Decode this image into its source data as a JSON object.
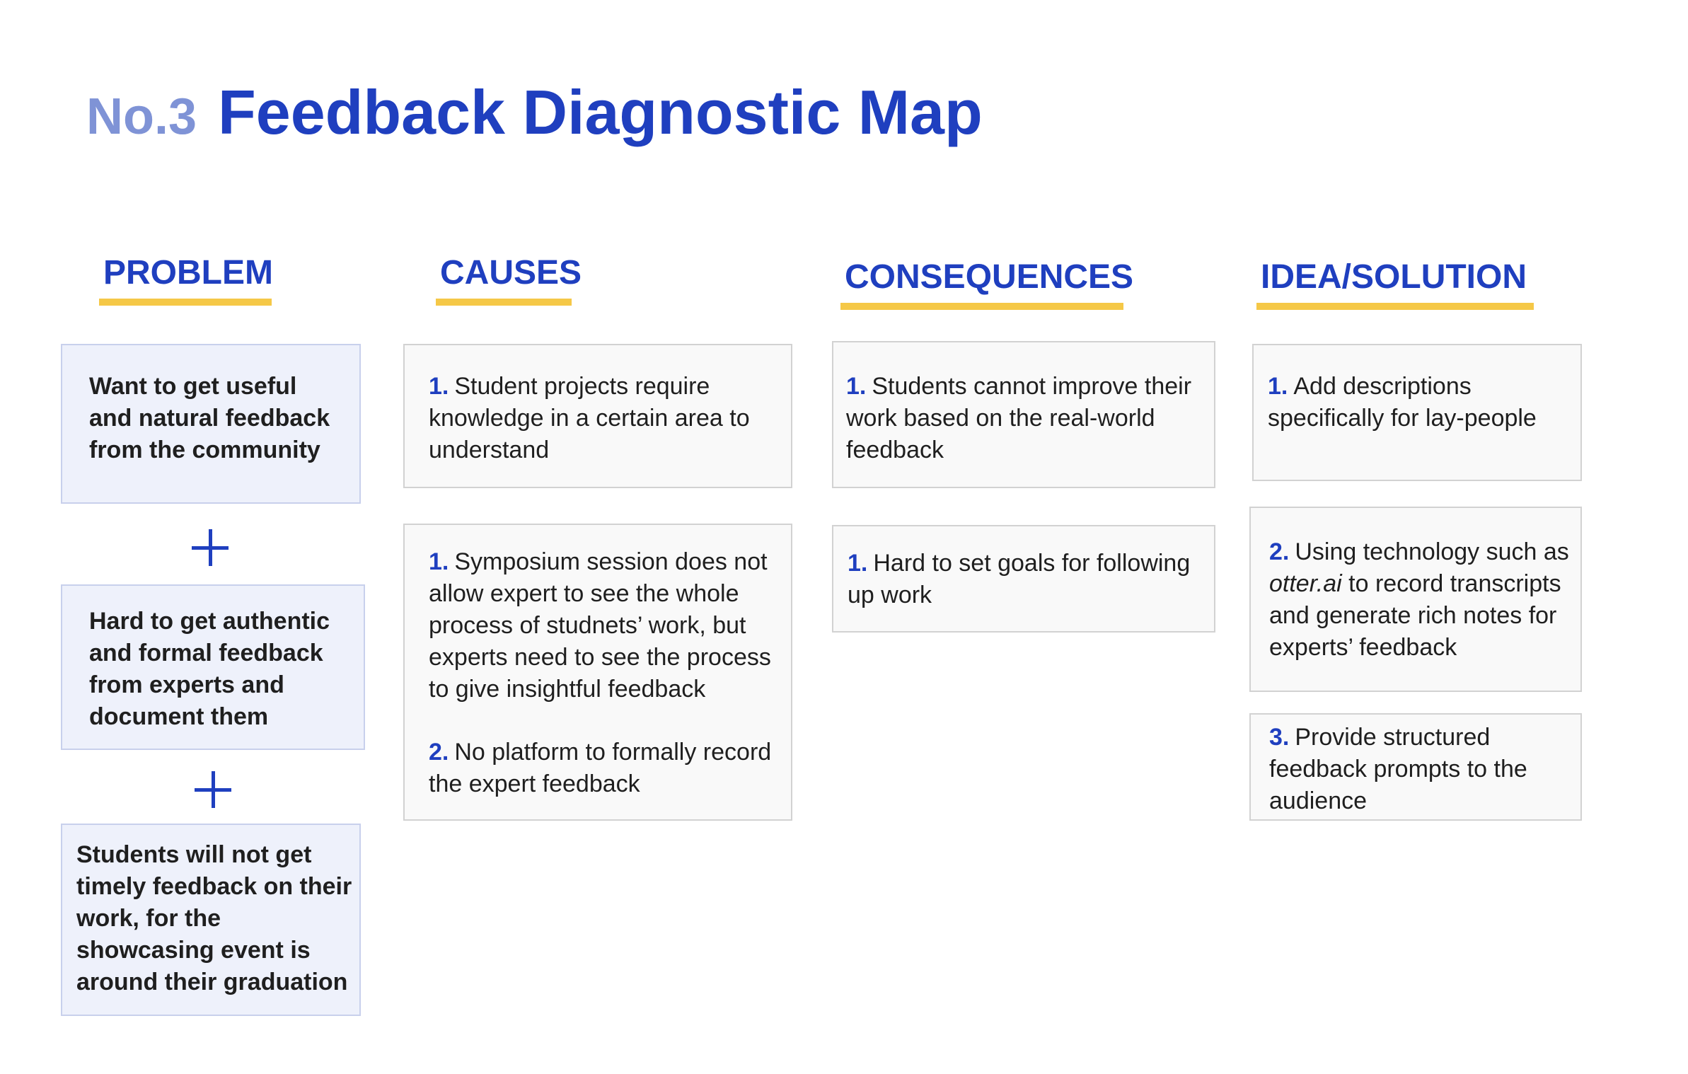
{
  "header": {
    "number": "No.3",
    "title": "Feedback Diagnostic Map"
  },
  "columns": {
    "problem": "PROBLEM",
    "causes": "CAUSES",
    "consequences": "CONSEQUENCES",
    "solution": "IDEA/SOLUTION"
  },
  "problems": [
    "Want to get useful and natural feedback from the community",
    "Hard to get authentic and formal feedback from experts and document them",
    "Students will not get timely feedback on their work, for the showcasing event is around their graduation"
  ],
  "causes": [
    {
      "num": "1.",
      "text": "Student projects require knowledge in a certain area to understand"
    },
    {
      "num": "1.",
      "text": "Symposium session does not allow expert to see the whole process of studnets’ work, but experts need to see the process to give insightful feedback"
    },
    {
      "num": "2.",
      "text": "No platform to formally record the expert feedback"
    }
  ],
  "consequences": [
    {
      "num": "1.",
      "text": "Students cannot improve their work based on the real-world feedback"
    },
    {
      "num": "1.",
      "text": "Hard to set goals for following up work"
    }
  ],
  "solutions": [
    {
      "num": "1.",
      "text": "Add descriptions specifically for lay-people"
    },
    {
      "num": "2.",
      "before": "Using technology such as",
      "italic": "otter.ai",
      "after": "to record transcripts and generate rich notes for experts’ feedback"
    },
    {
      "num": "3.",
      "text": "Provide structured feedback prompts to the audience"
    }
  ]
}
